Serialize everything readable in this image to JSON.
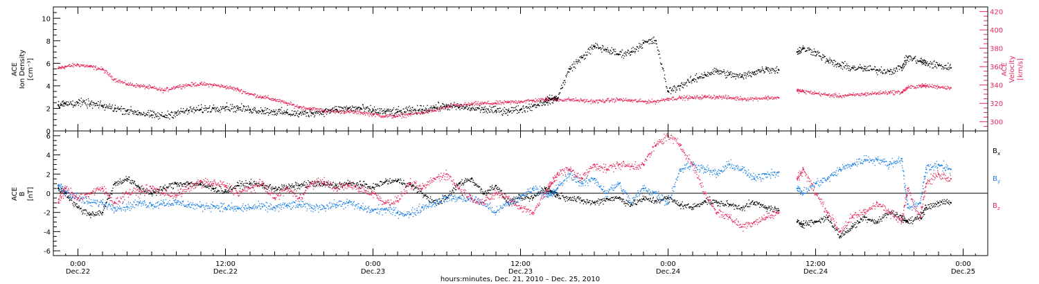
{
  "chart_data": [
    {
      "type": "scatter",
      "panel": "top",
      "ylabel_left": [
        "ACE",
        "Ion Density",
        "[cm⁻³]"
      ],
      "ylabel_right": [
        "ACE",
        "Velocity",
        "[km/s]"
      ],
      "ylim_left": [
        0,
        11
      ],
      "ylim_right": [
        290,
        425
      ],
      "yticks_left": [
        "0",
        "2",
        "4",
        "6",
        "8",
        "10"
      ],
      "yticks_right": [
        "300",
        "320",
        "340",
        "360",
        "380",
        "400",
        "420"
      ],
      "colors": {
        "density": "#000000",
        "velocity": "#e8285a"
      },
      "series": [
        {
          "axis": "left",
          "color": "#000000",
          "x": [
            -1.6,
            -1.0,
            0.0,
            1.0,
            2.0,
            3.0,
            4.0,
            5.0,
            6.0,
            7.0,
            8.0,
            9.0,
            10.0,
            11.0,
            12.0,
            13.0,
            14.0,
            15.0,
            16.0,
            17.0,
            18.0,
            19.0,
            20.0,
            21.0,
            22.0,
            23.0,
            24.0,
            25.0,
            26.0,
            27.0,
            28.0,
            29.0,
            30.0,
            31.0,
            32.0,
            33.0,
            34.0,
            35.0,
            36.0,
            37.0,
            38.0,
            38.5,
            39.0,
            40.0,
            41.0,
            42.0,
            43.0,
            44.0,
            45.0,
            46.0,
            47.0,
            48.0,
            49.0,
            50.0,
            51.0,
            52.0,
            53.0,
            54.0,
            55.0,
            56.0,
            57.0,
            58.5,
            59.0,
            60.0,
            61.0,
            62.0,
            63.0,
            64.0,
            65.0,
            66.0,
            67.0,
            67.5,
            68.5,
            69.0,
            70.0,
            71.0
          ],
          "y": [
            2.3,
            2.4,
            2.5,
            2.4,
            2.2,
            2.0,
            1.8,
            1.6,
            1.4,
            1.3,
            1.6,
            1.8,
            1.9,
            2.0,
            2.1,
            2.0,
            1.9,
            1.8,
            1.7,
            1.6,
            1.5,
            1.6,
            1.7,
            1.9,
            2.0,
            2.0,
            1.8,
            1.7,
            1.7,
            1.8,
            1.9,
            2.1,
            2.2,
            2.1,
            2.0,
            1.9,
            1.8,
            1.8,
            1.9,
            2.2,
            2.6,
            2.8,
            2.9,
            5.5,
            6.5,
            7.5,
            7.2,
            6.8,
            7.0,
            7.8,
            8.0,
            3.5,
            4.0,
            4.5,
            5.0,
            5.3,
            5.0,
            4.8,
            5.2,
            5.5,
            5.4,
            7.0,
            7.3,
            7.0,
            6.2,
            5.8,
            5.6,
            5.5,
            5.4,
            5.3,
            5.6,
            6.5,
            6.2,
            6.0,
            5.8,
            5.6
          ]
        },
        {
          "axis": "right",
          "color": "#e8285a",
          "x": [
            -1.6,
            -1.0,
            0.0,
            1.0,
            2.0,
            3.0,
            4.0,
            5.0,
            6.0,
            7.0,
            8.0,
            9.0,
            10.0,
            11.0,
            12.0,
            13.0,
            14.0,
            15.0,
            16.0,
            17.0,
            18.0,
            19.0,
            20.0,
            21.0,
            22.0,
            23.0,
            24.0,
            25.0,
            26.0,
            27.0,
            28.0,
            29.0,
            30.0,
            31.0,
            32.0,
            33.0,
            34.0,
            35.0,
            36.0,
            37.0,
            38.0,
            38.5,
            39.0,
            40.0,
            41.0,
            42.0,
            43.0,
            44.0,
            45.0,
            46.0,
            47.0,
            48.0,
            49.0,
            50.0,
            51.0,
            52.0,
            53.0,
            54.0,
            55.0,
            56.0,
            57.0,
            58.5,
            59.0,
            60.0,
            61.0,
            62.0,
            63.0,
            64.0,
            65.0,
            66.0,
            67.0,
            67.5,
            68.5,
            69.0,
            70.0,
            71.0
          ],
          "y": [
            358,
            360,
            362,
            360,
            357,
            346,
            341,
            339,
            337,
            334,
            338,
            340,
            341,
            340,
            338,
            335,
            330,
            327,
            324,
            320,
            316,
            314,
            312,
            311,
            311,
            310,
            308,
            306,
            306,
            308,
            310,
            312,
            316,
            318,
            319,
            320,
            320,
            321,
            322,
            323,
            324,
            325,
            324,
            324,
            323,
            322,
            323,
            324,
            323,
            322,
            322,
            325,
            326,
            326,
            327,
            327,
            326,
            325,
            325,
            326,
            326,
            334,
            333,
            331,
            329,
            328,
            329,
            330,
            331,
            332,
            332,
            337,
            339,
            339,
            338,
            337
          ]
        }
      ]
    },
    {
      "type": "scatter",
      "panel": "bottom",
      "ylabel_left": [
        "ACE",
        "B",
        "[nT]"
      ],
      "ylim": [
        -6.5,
        6.5
      ],
      "yticks": [
        "-6",
        "-4",
        "-2",
        "0",
        "2",
        "4",
        "6"
      ],
      "zero_line": true,
      "legend_position": "right",
      "colors": {
        "Bx": "#000000",
        "By": "#1e82e6",
        "Bz": "#e8285a"
      },
      "series": [
        {
          "name": "Bx",
          "color": "#000000",
          "x": [
            -1.6,
            -1.0,
            0.0,
            1.0,
            2.0,
            3.0,
            4.0,
            5.0,
            6.0,
            7.0,
            8.0,
            9.0,
            10.0,
            11.0,
            12.0,
            13.0,
            14.0,
            15.0,
            16.0,
            17.0,
            18.0,
            19.0,
            20.0,
            21.0,
            22.0,
            23.0,
            24.0,
            25.0,
            26.0,
            27.0,
            28.0,
            29.0,
            30.0,
            31.0,
            32.0,
            33.0,
            34.0,
            35.0,
            36.0,
            37.0,
            38.0,
            38.5,
            39.0,
            40.0,
            41.0,
            42.0,
            43.0,
            44.0,
            45.0,
            46.0,
            47.0,
            48.0,
            49.0,
            50.0,
            51.0,
            52.0,
            53.0,
            54.0,
            55.0,
            56.0,
            57.0,
            58.5,
            59.0,
            60.0,
            61.0,
            62.0,
            63.0,
            64.0,
            65.0,
            66.0,
            67.0,
            67.5,
            68.5,
            69.0,
            70.0,
            71.0
          ],
          "y": [
            0.5,
            0.0,
            -1.5,
            -2.2,
            -2.0,
            1.0,
            1.5,
            0.6,
            0.0,
            0.5,
            1.0,
            1.0,
            0.9,
            0.5,
            0.2,
            0.8,
            1.0,
            0.8,
            0.5,
            0.6,
            0.8,
            1.0,
            0.9,
            0.8,
            1.0,
            0.9,
            0.6,
            1.2,
            1.3,
            0.9,
            0.0,
            -1.0,
            -0.5,
            1.0,
            1.5,
            0.0,
            0.8,
            -1.0,
            -0.5,
            -0.5,
            0.5,
            0.2,
            -0.2,
            -0.5,
            -0.8,
            -1.0,
            -0.6,
            -0.5,
            -1.2,
            -0.6,
            -0.8,
            -0.5,
            -1.2,
            -1.5,
            -0.8,
            -1.0,
            -1.2,
            -1.5,
            -1.0,
            -1.5,
            -1.8,
            -3.0,
            -3.2,
            -3.0,
            -2.5,
            -4.5,
            -3.5,
            -2.5,
            -3.0,
            -2.0,
            -2.5,
            -3.0,
            -2.5,
            -1.5,
            -1.0,
            -1.0
          ]
        },
        {
          "name": "By",
          "color": "#1e82e6",
          "x": [
            -1.6,
            -1.0,
            0.0,
            1.0,
            2.0,
            3.0,
            4.0,
            5.0,
            6.0,
            7.0,
            8.0,
            9.0,
            10.0,
            11.0,
            12.0,
            13.0,
            14.0,
            15.0,
            16.0,
            17.0,
            18.0,
            19.0,
            20.0,
            21.0,
            22.0,
            23.0,
            24.0,
            25.0,
            26.0,
            27.0,
            28.0,
            29.0,
            30.0,
            31.0,
            32.0,
            33.0,
            34.0,
            35.0,
            36.0,
            37.0,
            38.0,
            38.5,
            39.0,
            40.0,
            41.0,
            42.0,
            43.0,
            44.0,
            45.0,
            46.0,
            47.0,
            48.0,
            49.0,
            50.0,
            51.0,
            52.0,
            53.0,
            54.0,
            55.0,
            56.0,
            57.0,
            58.5,
            59.0,
            60.0,
            61.0,
            62.0,
            63.0,
            64.0,
            65.0,
            66.0,
            67.0,
            67.5,
            68.5,
            69.0,
            70.0,
            71.0
          ],
          "y": [
            0.8,
            0.2,
            -0.5,
            -1.0,
            -1.0,
            -1.5,
            -1.4,
            -1.0,
            -1.2,
            -1.0,
            -1.0,
            -1.2,
            -1.4,
            -1.3,
            -1.5,
            -1.6,
            -1.5,
            -1.4,
            -1.5,
            -1.3,
            -1.2,
            -1.5,
            -1.4,
            -1.2,
            -1.0,
            -1.5,
            -1.8,
            -1.7,
            -2.0,
            -2.2,
            -1.5,
            -1.0,
            -0.5,
            -0.5,
            -0.6,
            -1.0,
            -2.0,
            -1.0,
            -0.5,
            0.5,
            0.0,
            -0.2,
            0.5,
            2.0,
            1.0,
            1.5,
            0.0,
            1.0,
            -1.0,
            0.5,
            0.0,
            -1.0,
            2.5,
            3.0,
            2.5,
            2.0,
            3.0,
            2.5,
            1.5,
            2.0,
            2.2,
            0.5,
            0.0,
            1.0,
            1.5,
            2.5,
            3.0,
            3.5,
            3.5,
            3.0,
            3.6,
            -1.5,
            -1.0,
            2.5,
            3.0,
            2.5
          ]
        },
        {
          "name": "Bz",
          "color": "#e8285a",
          "x": [
            -1.6,
            -1.0,
            0.0,
            1.0,
            2.0,
            3.0,
            4.0,
            5.0,
            6.0,
            7.0,
            8.0,
            9.0,
            10.0,
            11.0,
            12.0,
            13.0,
            14.0,
            15.0,
            16.0,
            17.0,
            18.0,
            19.0,
            20.0,
            21.0,
            22.0,
            23.0,
            24.0,
            25.0,
            26.0,
            27.0,
            28.0,
            29.0,
            30.0,
            31.0,
            32.0,
            33.0,
            34.0,
            35.0,
            36.0,
            37.0,
            38.0,
            38.5,
            39.0,
            40.0,
            41.0,
            42.0,
            43.0,
            44.0,
            45.0,
            46.0,
            47.0,
            48.0,
            49.0,
            50.0,
            51.0,
            52.0,
            53.0,
            54.0,
            55.0,
            56.0,
            57.0,
            58.5,
            59.0,
            60.0,
            61.0,
            62.0,
            63.0,
            64.0,
            65.0,
            66.0,
            67.0,
            67.5,
            68.5,
            69.0,
            70.0,
            71.0
          ],
          "y": [
            -1.0,
            0.5,
            -0.5,
            0.0,
            0.5,
            -1.0,
            0.0,
            0.2,
            0.5,
            0.0,
            -0.2,
            0.5,
            1.2,
            1.0,
            0.8,
            0.0,
            0.5,
            1.0,
            -0.5,
            0.5,
            -0.5,
            1.0,
            1.2,
            0.5,
            0.8,
            0.5,
            0.0,
            -1.0,
            -0.8,
            1.0,
            0.5,
            1.5,
            2.0,
            0.5,
            -0.5,
            -1.0,
            0.0,
            -0.5,
            -1.5,
            -2.0,
            0.0,
            1.0,
            2.0,
            2.5,
            1.5,
            3.0,
            2.5,
            3.0,
            2.8,
            3.0,
            5.0,
            6.0,
            5.0,
            3.0,
            0.0,
            -2.0,
            -2.5,
            -3.5,
            -3.0,
            -2.5,
            -2.0,
            1.5,
            2.5,
            0.0,
            -2.0,
            -4.0,
            -2.5,
            -2.0,
            -1.0,
            -2.0,
            -3.0,
            0.5,
            -2.5,
            1.0,
            2.0,
            1.5
          ]
        }
      ]
    }
  ],
  "x_axis": {
    "xlim": [
      -2,
      74
    ],
    "major_ticks": [
      0,
      12,
      24,
      36,
      48,
      60,
      72
    ],
    "tick_labels_time": [
      "0:00",
      "12:00",
      "0:00",
      "12:00",
      "0:00",
      "12:00",
      "0:00"
    ],
    "tick_labels_date": [
      "Dec.22",
      "Dec.22",
      "Dec.23",
      "Dec.23",
      "Dec.24",
      "Dec.24",
      "Dec.25"
    ],
    "title": "hours:minutes, Dec. 21, 2010 – Dec. 25, 2010"
  },
  "legend": [
    {
      "key": "Bx",
      "letter": "B",
      "sub": "x",
      "color": "#000000"
    },
    {
      "key": "By",
      "letter": "B",
      "sub": "y",
      "color": "#1e82e6"
    },
    {
      "key": "Bz",
      "letter": "B",
      "sub": "z",
      "color": "#e8285a"
    }
  ]
}
